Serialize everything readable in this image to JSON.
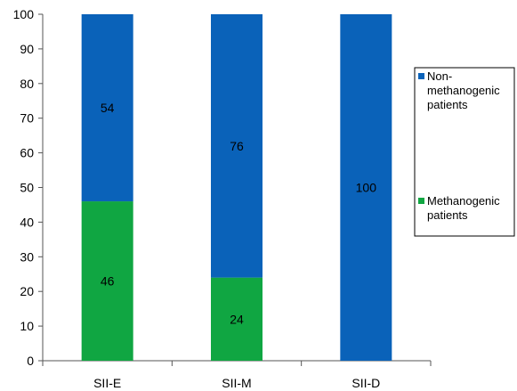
{
  "chart_data": {
    "type": "bar",
    "stacked": true,
    "categories": [
      "SII-E",
      "SII-M",
      "SII-D"
    ],
    "series": [
      {
        "name": "Methanogenic patients",
        "legend_lines": [
          "Methanogenic",
          "patients"
        ],
        "values": [
          46,
          24,
          0
        ],
        "labels": [
          "46",
          "24",
          ""
        ],
        "color": "#10a642"
      },
      {
        "name": "Non-methanogenic patients",
        "legend_lines": [
          "Non-",
          "methanogenic",
          "patients"
        ],
        "values": [
          54,
          76,
          100
        ],
        "labels": [
          "54",
          "76",
          "100"
        ],
        "color": "#0a62b9"
      }
    ],
    "y_ticks": [
      "0",
      "10",
      "20",
      "30",
      "40",
      "50",
      "60",
      "70",
      "80",
      "90",
      "100"
    ],
    "ylim": [
      0,
      100
    ],
    "grid": false,
    "legend": "right",
    "title": "",
    "xlabel": "",
    "ylabel": ""
  }
}
